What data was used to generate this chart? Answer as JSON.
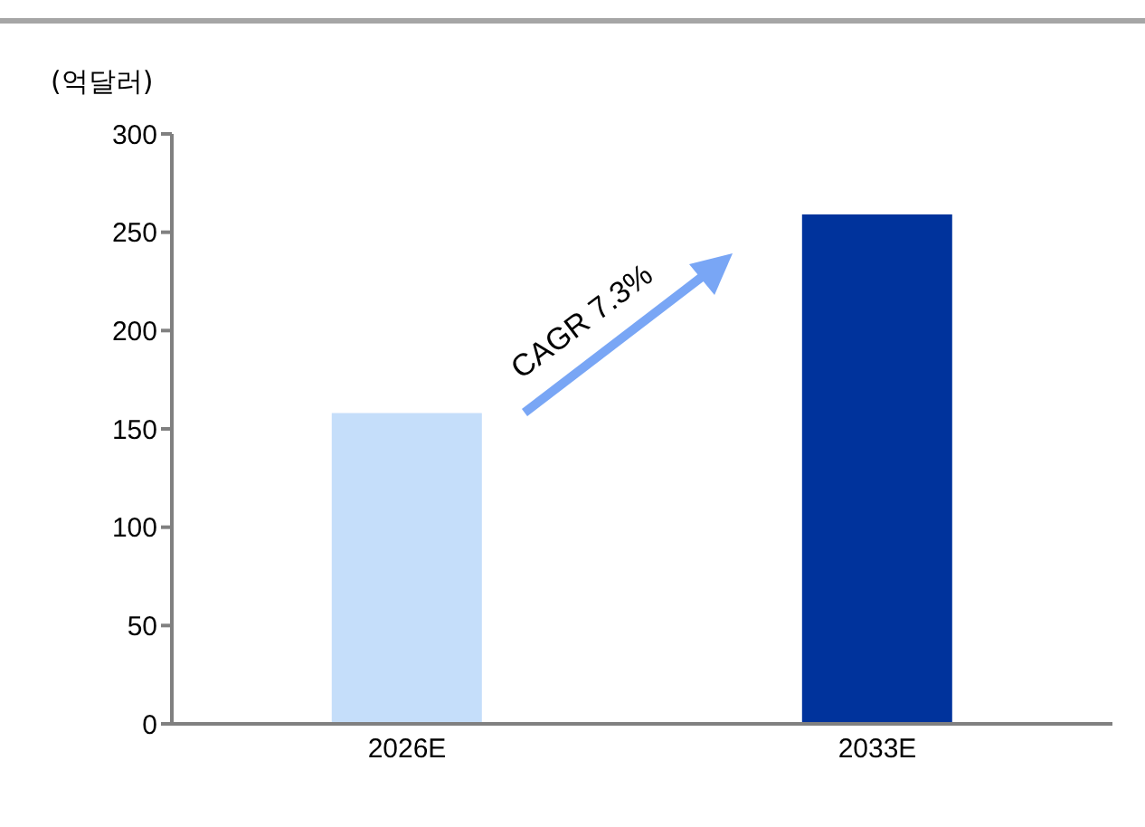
{
  "chart_data": {
    "type": "bar",
    "ylabel": "(억달러)",
    "categories": [
      "2026E",
      "2033E"
    ],
    "values": [
      158,
      259
    ],
    "colors": [
      "#c5defa",
      "#00339c"
    ],
    "ylim": [
      0,
      300
    ],
    "yticks": [
      0,
      50,
      100,
      150,
      200,
      250,
      300
    ],
    "grid": false,
    "annotations": [
      "CAGR 7.3%"
    ]
  }
}
